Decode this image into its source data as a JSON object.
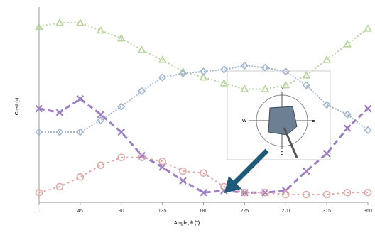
{
  "chart_data": {
    "type": "line",
    "x_label": "Angle, θ (°)",
    "y_label": "Cost (-)",
    "x": [
      0,
      22.5,
      45,
      67.5,
      90,
      112.5,
      135,
      157.5,
      180,
      202.5,
      225,
      247.5,
      270,
      292.5,
      315,
      337.5,
      360
    ],
    "xlim": [
      0,
      360
    ],
    "xticks": [
      0,
      45,
      90,
      135,
      180,
      225,
      270,
      315,
      360
    ],
    "ylim": [
      0,
      1
    ],
    "series": [
      {
        "color": "#b7d59c",
        "marker": "triangle",
        "values": [
          0.9,
          0.92,
          0.92,
          0.88,
          0.84,
          0.78,
          0.73,
          0.67,
          0.64,
          0.61,
          0.58,
          0.58,
          0.6,
          0.65,
          0.73,
          0.81,
          0.89
        ]
      },
      {
        "color": "#a3b8d0",
        "marker": "diamond",
        "values": [
          0.36,
          0.36,
          0.36,
          0.42,
          0.49,
          0.57,
          0.64,
          0.66,
          0.67,
          0.68,
          0.7,
          0.69,
          0.67,
          0.6,
          0.5,
          0.45,
          0.37
        ]
      },
      {
        "color": "#9c7fc4",
        "marker": "cross",
        "values": [
          0.48,
          0.46,
          0.53,
          0.45,
          0.36,
          0.24,
          0.18,
          0.11,
          0.05,
          0.06,
          0.05,
          0.05,
          0.06,
          0.16,
          0.25,
          0.38,
          0.48
        ]
      },
      {
        "color": "#e2a7a7",
        "marker": "circle",
        "values": [
          0.05,
          0.08,
          0.13,
          0.19,
          0.23,
          0.23,
          0.21,
          0.16,
          0.15,
          0.08,
          0.05,
          0.05,
          0.04,
          0.04,
          0.04,
          0.05,
          0.05
        ]
      }
    ],
    "compass_labels": [
      "N",
      "E",
      "S",
      "W"
    ]
  }
}
